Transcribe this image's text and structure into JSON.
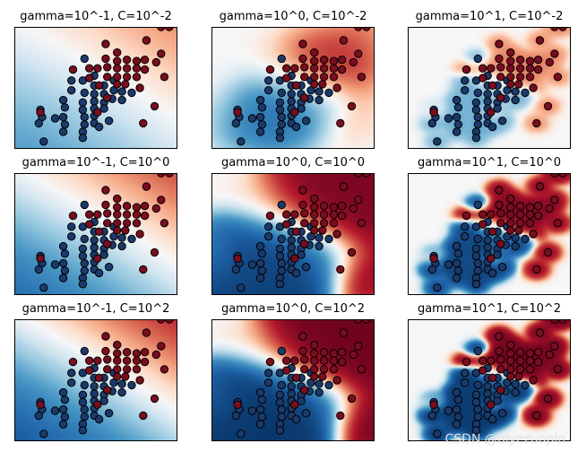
{
  "chart_data": {
    "type": "scatter",
    "description_kind": "grid of RBF SVM decision-function heatmaps with two-class scatter overlay",
    "colormap": "RdBu",
    "class_colors": {
      "class_0": "#1b3a6b",
      "class_1": "#7a0d1e"
    },
    "point_edge_color": "#000000",
    "panels": [
      {
        "title": "gamma=10^-1, C=10^-2",
        "gamma": 0.1,
        "C": 0.01
      },
      {
        "title": "gamma=10^0, C=10^-2",
        "gamma": 1,
        "C": 0.01
      },
      {
        "title": "gamma=10^1, C=10^-2",
        "gamma": 10,
        "C": 0.01
      },
      {
        "title": "gamma=10^-1, C=10^0",
        "gamma": 0.1,
        "C": 1
      },
      {
        "title": "gamma=10^0, C=10^0",
        "gamma": 1,
        "C": 1
      },
      {
        "title": "gamma=10^1, C=10^0",
        "gamma": 10,
        "C": 1
      },
      {
        "title": "gamma=10^-1, C=10^2",
        "gamma": 0.1,
        "C": 100
      },
      {
        "title": "gamma=10^0, C=10^2",
        "gamma": 1,
        "C": 100
      },
      {
        "title": "gamma=10^1, C=10^2",
        "gamma": 10,
        "C": 100
      }
    ],
    "xlim": [
      0,
      10
    ],
    "ylim": [
      0,
      10
    ],
    "points": [
      {
        "x": 1.6,
        "y": 3.2,
        "c": 0
      },
      {
        "x": 1.7,
        "y": 2.6,
        "c": 0
      },
      {
        "x": 1.5,
        "y": 2.1,
        "c": 0
      },
      {
        "x": 1.8,
        "y": 0.6,
        "c": 0
      },
      {
        "x": 2.5,
        "y": 2.5,
        "c": 0
      },
      {
        "x": 3.0,
        "y": 4.0,
        "c": 0
      },
      {
        "x": 3.1,
        "y": 3.4,
        "c": 0
      },
      {
        "x": 3.0,
        "y": 2.6,
        "c": 0
      },
      {
        "x": 3.1,
        "y": 2.0,
        "c": 0
      },
      {
        "x": 3.0,
        "y": 1.4,
        "c": 0
      },
      {
        "x": 3.5,
        "y": 5.6,
        "c": 0
      },
      {
        "x": 3.5,
        "y": 4.8,
        "c": 0
      },
      {
        "x": 4.2,
        "y": 5.6,
        "c": 0
      },
      {
        "x": 4.3,
        "y": 4.6,
        "c": 0
      },
      {
        "x": 4.2,
        "y": 3.8,
        "c": 0
      },
      {
        "x": 4.2,
        "y": 3.2,
        "c": 0
      },
      {
        "x": 4.3,
        "y": 2.6,
        "c": 0
      },
      {
        "x": 4.3,
        "y": 2.0,
        "c": 0
      },
      {
        "x": 4.2,
        "y": 1.4,
        "c": 0
      },
      {
        "x": 4.2,
        "y": 0.9,
        "c": 0
      },
      {
        "x": 4.3,
        "y": 7.4,
        "c": 0
      },
      {
        "x": 4.9,
        "y": 6.0,
        "c": 0
      },
      {
        "x": 4.9,
        "y": 5.2,
        "c": 0
      },
      {
        "x": 4.9,
        "y": 4.5,
        "c": 0
      },
      {
        "x": 4.9,
        "y": 3.9,
        "c": 0
      },
      {
        "x": 4.9,
        "y": 3.3,
        "c": 0
      },
      {
        "x": 4.9,
        "y": 2.7,
        "c": 0
      },
      {
        "x": 4.9,
        "y": 2.1,
        "c": 0
      },
      {
        "x": 5.5,
        "y": 5.2,
        "c": 0
      },
      {
        "x": 5.5,
        "y": 4.5,
        "c": 0
      },
      {
        "x": 5.5,
        "y": 3.8,
        "c": 0
      },
      {
        "x": 5.5,
        "y": 3.3,
        "c": 0
      },
      {
        "x": 6.1,
        "y": 5.6,
        "c": 0
      },
      {
        "x": 6.1,
        "y": 4.8,
        "c": 0
      },
      {
        "x": 6.0,
        "y": 4.1,
        "c": 0
      },
      {
        "x": 6.6,
        "y": 4.7,
        "c": 0
      },
      {
        "x": 6.6,
        "y": 4.0,
        "c": 0
      },
      {
        "x": 5.2,
        "y": 1.8,
        "c": 0
      },
      {
        "x": 5.8,
        "y": 2.3,
        "c": 0
      },
      {
        "x": 7.2,
        "y": 4.6,
        "c": 0
      },
      {
        "x": 1.6,
        "y": 3.0,
        "c": 1
      },
      {
        "x": 3.6,
        "y": 6.5,
        "c": 1
      },
      {
        "x": 4.6,
        "y": 6.6,
        "c": 1
      },
      {
        "x": 4.6,
        "y": 5.8,
        "c": 1
      },
      {
        "x": 5.1,
        "y": 6.6,
        "c": 1
      },
      {
        "x": 5.2,
        "y": 5.2,
        "c": 1
      },
      {
        "x": 5.6,
        "y": 8.6,
        "c": 1
      },
      {
        "x": 5.6,
        "y": 7.4,
        "c": 1
      },
      {
        "x": 5.7,
        "y": 6.7,
        "c": 1
      },
      {
        "x": 5.7,
        "y": 5.9,
        "c": 1
      },
      {
        "x": 5.7,
        "y": 4.2,
        "c": 1
      },
      {
        "x": 6.3,
        "y": 7.9,
        "c": 1
      },
      {
        "x": 6.3,
        "y": 7.2,
        "c": 1
      },
      {
        "x": 6.3,
        "y": 6.6,
        "c": 1
      },
      {
        "x": 6.3,
        "y": 5.9,
        "c": 1
      },
      {
        "x": 6.3,
        "y": 5.3,
        "c": 1
      },
      {
        "x": 6.9,
        "y": 7.3,
        "c": 1
      },
      {
        "x": 6.9,
        "y": 6.6,
        "c": 1
      },
      {
        "x": 6.9,
        "y": 5.9,
        "c": 1
      },
      {
        "x": 6.8,
        "y": 5.3,
        "c": 1
      },
      {
        "x": 7.5,
        "y": 7.2,
        "c": 1
      },
      {
        "x": 7.5,
        "y": 6.6,
        "c": 1
      },
      {
        "x": 7.5,
        "y": 5.9,
        "c": 1
      },
      {
        "x": 8.0,
        "y": 7.3,
        "c": 1
      },
      {
        "x": 8.0,
        "y": 6.5,
        "c": 1
      },
      {
        "x": 8.7,
        "y": 7.1,
        "c": 1
      },
      {
        "x": 9.2,
        "y": 5.9,
        "c": 1
      },
      {
        "x": 9.0,
        "y": 7.8,
        "c": 1
      },
      {
        "x": 7.9,
        "y": 2.1,
        "c": 1
      },
      {
        "x": 8.6,
        "y": 3.5,
        "c": 1
      },
      {
        "x": 9.0,
        "y": 10.0,
        "c": 1
      },
      {
        "x": 9.5,
        "y": 10.0,
        "c": 1
      },
      {
        "x": 8.1,
        "y": 8.9,
        "c": 1
      },
      {
        "x": 7.7,
        "y": 5.0,
        "c": 1
      },
      {
        "x": 5.1,
        "y": 3.0,
        "c": 1
      }
    ]
  },
  "watermark": "CSDN @biyezuopin"
}
